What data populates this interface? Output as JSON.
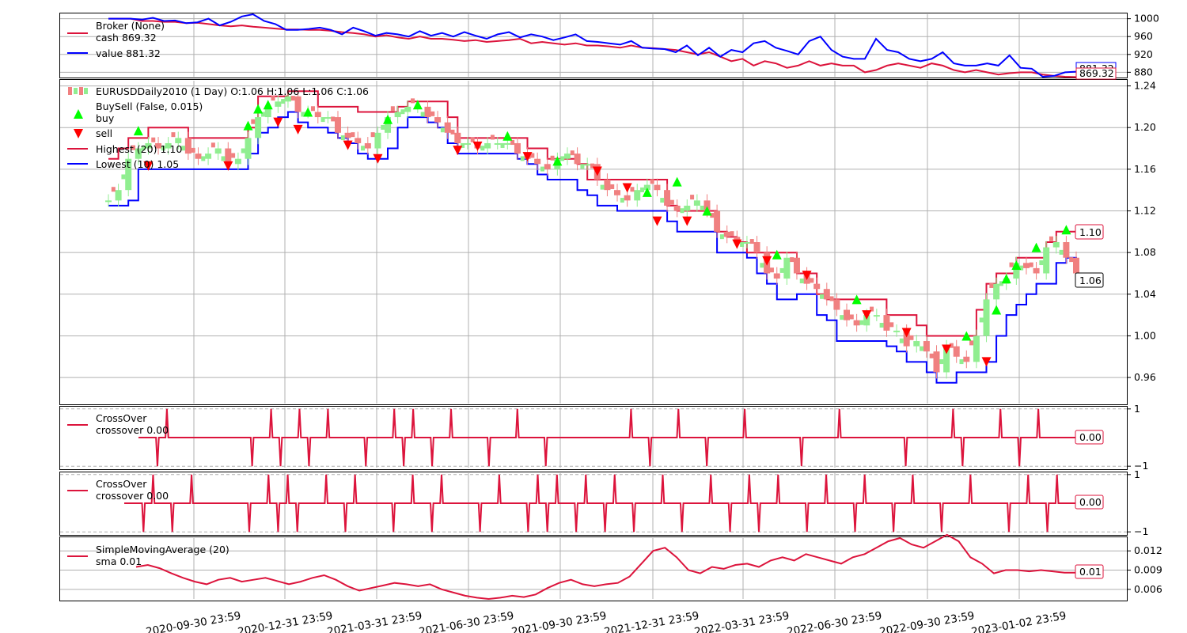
{
  "chart_data": [
    {
      "type": "line",
      "panel": "broker",
      "ylim": [
        870,
        1010
      ],
      "yticks": [
        1000,
        960,
        920,
        880
      ],
      "grid": true,
      "legend": {
        "placement": "top-left",
        "entries": [
          "Broker (None)",
          "cash 869.32",
          "value 881.32"
        ]
      },
      "series": [
        {
          "name": "cash 869.32",
          "color": "#dc143c",
          "values": [
            1000,
            1000,
            1000,
            995,
            995,
            993,
            993,
            990,
            991,
            988,
            985,
            983,
            985,
            982,
            980,
            978,
            976,
            976,
            975,
            975,
            973,
            970,
            968,
            965,
            960,
            963,
            958,
            955,
            960,
            955,
            955,
            953,
            950,
            952,
            948,
            950,
            952,
            955,
            945,
            948,
            945,
            942,
            945,
            940,
            940,
            938,
            935,
            940,
            935,
            934,
            932,
            930,
            925,
            920,
            925,
            915,
            905,
            910,
            895,
            905,
            900,
            890,
            895,
            905,
            895,
            900,
            895,
            895,
            880,
            885,
            895,
            900,
            895,
            890,
            900,
            895,
            885,
            880,
            885,
            880,
            875,
            878,
            880,
            880,
            875,
            872,
            870,
            869.32
          ]
        },
        {
          "name": "value 881.32",
          "color": "#0000ff",
          "values": [
            1000,
            1000,
            1000,
            998,
            1002,
            995,
            996,
            990,
            992,
            1000,
            985,
            993,
            1005,
            1010,
            995,
            988,
            975,
            975,
            977,
            980,
            975,
            965,
            980,
            972,
            962,
            968,
            965,
            960,
            972,
            962,
            968,
            960,
            970,
            962,
            955,
            965,
            970,
            958,
            965,
            960,
            952,
            958,
            965,
            950,
            948,
            945,
            942,
            950,
            935,
            933,
            932,
            925,
            940,
            918,
            935,
            915,
            930,
            925,
            945,
            950,
            935,
            928,
            920,
            950,
            960,
            930,
            915,
            910,
            910,
            955,
            930,
            925,
            910,
            905,
            910,
            925,
            900,
            895,
            895,
            900,
            895,
            918,
            890,
            888,
            870,
            872,
            880,
            881.32
          ]
        }
      ],
      "end_labels": [
        "881.32",
        "869.32"
      ]
    },
    {
      "type": "candlestick",
      "panel": "price",
      "ylim": [
        0.935,
        1.245
      ],
      "yticks": [
        "1.24",
        "1.20",
        "1.16",
        "1.12",
        "1.08",
        "1.04",
        "1.00",
        "0.96"
      ],
      "grid": true,
      "legend": {
        "placement": "top-left",
        "entries": [
          "EURUSDDaily2010 (1 Day) O:1.06 H:1.06 L:1.06 C:1.06",
          "BuySell (False, 0.015)",
          "buy",
          "sell",
          "Highest (20) 1.10",
          "Lowest (10) 1.05"
        ]
      },
      "close": [
        1.13,
        1.14,
        1.17,
        1.18,
        1.185,
        1.18,
        1.185,
        1.19,
        1.175,
        1.17,
        1.175,
        1.18,
        1.165,
        1.17,
        1.19,
        1.21,
        1.22,
        1.225,
        1.23,
        1.215,
        1.215,
        1.21,
        1.21,
        1.195,
        1.19,
        1.185,
        1.18,
        1.195,
        1.21,
        1.215,
        1.22,
        1.22,
        1.21,
        1.205,
        1.195,
        1.185,
        1.185,
        1.18,
        1.185,
        1.185,
        1.185,
        1.175,
        1.17,
        1.165,
        1.16,
        1.17,
        1.175,
        1.165,
        1.165,
        1.15,
        1.14,
        1.135,
        1.13,
        1.14,
        1.145,
        1.14,
        1.125,
        1.12,
        1.125,
        1.13,
        1.12,
        1.1,
        1.095,
        1.09,
        1.09,
        1.08,
        1.06,
        1.055,
        1.075,
        1.06,
        1.05,
        1.045,
        1.035,
        1.025,
        1.015,
        1.01,
        1.02,
        1.02,
        1.005,
        1.005,
        0.99,
        0.995,
        0.985,
        0.965,
        0.99,
        0.98,
        0.975,
        1.0,
        1.035,
        1.05,
        1.055,
        1.07,
        1.065,
        1.06,
        1.085,
        1.09,
        1.075,
        1.06
      ],
      "highest": [
        1.17,
        1.18,
        1.19,
        1.19,
        1.2,
        1.2,
        1.2,
        1.2,
        1.19,
        1.19,
        1.19,
        1.19,
        1.19,
        1.19,
        1.2,
        1.23,
        1.23,
        1.23,
        1.235,
        1.235,
        1.235,
        1.22,
        1.22,
        1.22,
        1.22,
        1.215,
        1.215,
        1.215,
        1.215,
        1.22,
        1.225,
        1.225,
        1.225,
        1.225,
        1.21,
        1.19,
        1.19,
        1.19,
        1.19,
        1.19,
        1.19,
        1.19,
        1.18,
        1.18,
        1.17,
        1.17,
        1.17,
        1.165,
        1.15,
        1.15,
        1.15,
        1.15,
        1.15,
        1.15,
        1.15,
        1.15,
        1.125,
        1.12,
        1.12,
        1.12,
        1.12,
        1.1,
        1.095,
        1.09,
        1.08,
        1.08,
        1.08,
        1.08,
        1.08,
        1.06,
        1.06,
        1.04,
        1.035,
        1.035,
        1.035,
        1.035,
        1.035,
        1.035,
        1.02,
        1.02,
        1.02,
        1.01,
        1.0,
        1.0,
        1.0,
        1.0,
        1.0,
        1.025,
        1.05,
        1.06,
        1.06,
        1.075,
        1.075,
        1.075,
        1.09,
        1.1,
        1.1,
        1.1
      ],
      "lowest": [
        1.125,
        1.125,
        1.13,
        1.16,
        1.16,
        1.16,
        1.16,
        1.16,
        1.16,
        1.16,
        1.16,
        1.16,
        1.16,
        1.16,
        1.175,
        1.195,
        1.2,
        1.21,
        1.215,
        1.205,
        1.2,
        1.2,
        1.195,
        1.19,
        1.185,
        1.175,
        1.17,
        1.17,
        1.18,
        1.2,
        1.21,
        1.21,
        1.205,
        1.2,
        1.185,
        1.175,
        1.175,
        1.175,
        1.175,
        1.175,
        1.175,
        1.17,
        1.165,
        1.155,
        1.15,
        1.15,
        1.15,
        1.14,
        1.135,
        1.125,
        1.125,
        1.12,
        1.12,
        1.12,
        1.12,
        1.12,
        1.11,
        1.1,
        1.1,
        1.1,
        1.1,
        1.08,
        1.08,
        1.08,
        1.075,
        1.06,
        1.05,
        1.035,
        1.035,
        1.04,
        1.04,
        1.02,
        1.015,
        0.995,
        0.995,
        0.995,
        0.995,
        0.995,
        0.99,
        0.985,
        0.975,
        0.975,
        0.965,
        0.955,
        0.955,
        0.965,
        0.965,
        0.965,
        0.975,
        1.0,
        1.02,
        1.03,
        1.04,
        1.05,
        1.05,
        1.07,
        1.075,
        1.05
      ],
      "buy_markers": [
        [
          3,
          1.197
        ],
        [
          14,
          1.202
        ],
        [
          15,
          1.218
        ],
        [
          16,
          1.222
        ],
        [
          20,
          1.215
        ],
        [
          28,
          1.208
        ],
        [
          31,
          1.222
        ],
        [
          40,
          1.192
        ],
        [
          45,
          1.168
        ],
        [
          54,
          1.138
        ],
        [
          57,
          1.148
        ],
        [
          60,
          1.12
        ],
        [
          67,
          1.078
        ],
        [
          75,
          1.035
        ],
        [
          86,
          1.0
        ],
        [
          89,
          1.025
        ],
        [
          90,
          1.055
        ],
        [
          91,
          1.068
        ],
        [
          93,
          1.085
        ],
        [
          96,
          1.102
        ]
      ],
      "sell_markers": [
        [
          4,
          1.163
        ],
        [
          12,
          1.163
        ],
        [
          17,
          1.205
        ],
        [
          19,
          1.198
        ],
        [
          24,
          1.183
        ],
        [
          27,
          1.17
        ],
        [
          35,
          1.178
        ],
        [
          37,
          1.182
        ],
        [
          42,
          1.172
        ],
        [
          49,
          1.158
        ],
        [
          52,
          1.142
        ],
        [
          55,
          1.11
        ],
        [
          58,
          1.11
        ],
        [
          63,
          1.088
        ],
        [
          66,
          1.072
        ],
        [
          70,
          1.058
        ],
        [
          76,
          1.02
        ],
        [
          80,
          1.003
        ],
        [
          84,
          0.987
        ],
        [
          88,
          0.975
        ]
      ],
      "end_labels": [
        "1.10",
        "1.06"
      ]
    },
    {
      "type": "line",
      "panel": "crossover_1",
      "ylim": [
        -1.05,
        1.05
      ],
      "yticks": [
        "1",
        "−1"
      ],
      "legend": {
        "placement": "top-left",
        "entries": [
          "CrossOver",
          "crossover 0.00"
        ]
      },
      "series": [
        {
          "name": "crossover 0.00",
          "color": "#dc143c",
          "events": [
            [
              2,
              -1
            ],
            [
              3,
              1
            ],
            [
              12,
              -1
            ],
            [
              14,
              1
            ],
            [
              15,
              -1
            ],
            [
              17,
              1
            ],
            [
              18,
              -1
            ],
            [
              20,
              1
            ],
            [
              24,
              -1
            ],
            [
              27,
              1
            ],
            [
              28,
              -1
            ],
            [
              29,
              1
            ],
            [
              31,
              -1
            ],
            [
              33,
              1
            ],
            [
              37,
              -1
            ],
            [
              40,
              1
            ],
            [
              43,
              -1
            ],
            [
              52,
              1
            ],
            [
              54,
              -1
            ],
            [
              57,
              1
            ],
            [
              60,
              -1
            ],
            [
              64,
              1
            ],
            [
              70,
              -1
            ],
            [
              74,
              1
            ],
            [
              81,
              -1
            ],
            [
              86,
              1
            ],
            [
              87,
              -1
            ],
            [
              91,
              1
            ],
            [
              93,
              -1
            ],
            [
              95,
              1
            ]
          ]
        }
      ],
      "end_label": "0.00"
    },
    {
      "type": "line",
      "panel": "crossover_2",
      "ylim": [
        -1.05,
        1.05
      ],
      "yticks": [
        "1",
        "−1"
      ],
      "legend": {
        "placement": "top-left",
        "entries": [
          "CrossOver",
          "crossover 0.00"
        ]
      },
      "series": [
        {
          "name": "crossover 0.00",
          "color": "#dc143c",
          "events": [
            [
              2,
              -1
            ],
            [
              3,
              1
            ],
            [
              5,
              -1
            ],
            [
              7,
              1
            ],
            [
              13,
              -1
            ],
            [
              15,
              1
            ],
            [
              16,
              -1
            ],
            [
              17,
              1
            ],
            [
              18,
              -1
            ],
            [
              21,
              1
            ],
            [
              23,
              -1
            ],
            [
              24,
              1
            ],
            [
              28,
              -1
            ],
            [
              30,
              1
            ],
            [
              32,
              -1
            ],
            [
              33,
              1
            ],
            [
              37,
              -1
            ],
            [
              39,
              1
            ],
            [
              42,
              -1
            ],
            [
              43,
              1
            ],
            [
              44,
              -1
            ],
            [
              45,
              1
            ],
            [
              47,
              -1
            ],
            [
              48,
              1
            ],
            [
              50,
              -1
            ],
            [
              51,
              1
            ],
            [
              53,
              -1
            ],
            [
              56,
              1
            ],
            [
              58,
              -1
            ],
            [
              61,
              1
            ],
            [
              63,
              -1
            ],
            [
              65,
              1
            ],
            [
              66,
              -1
            ],
            [
              68,
              1
            ],
            [
              71,
              -1
            ],
            [
              73,
              1
            ],
            [
              76,
              -1
            ],
            [
              77,
              1
            ],
            [
              80,
              -1
            ],
            [
              82,
              1
            ],
            [
              85,
              -1
            ],
            [
              88,
              1
            ],
            [
              92,
              -1
            ],
            [
              94,
              1
            ],
            [
              96,
              -1
            ],
            [
              97,
              1
            ]
          ]
        }
      ],
      "end_label": "0.00"
    },
    {
      "type": "line",
      "panel": "sma",
      "ylim": [
        0.0045,
        0.014
      ],
      "yticks": [
        "0.012",
        "0.009",
        "0.006"
      ],
      "grid": true,
      "legend": {
        "placement": "top-left",
        "entries": [
          "SimpleMovingAverage (20)",
          "sma 0.01"
        ]
      },
      "series": [
        {
          "name": "sma 0.01",
          "color": "#dc143c",
          "values": [
            0.0095,
            0.0098,
            0.0093,
            0.0085,
            0.0078,
            0.0072,
            0.0068,
            0.0075,
            0.0078,
            0.0072,
            0.0075,
            0.0078,
            0.0073,
            0.0068,
            0.0072,
            0.0078,
            0.0082,
            0.0075,
            0.0065,
            0.0058,
            0.0062,
            0.0066,
            0.007,
            0.0068,
            0.0065,
            0.0068,
            0.006,
            0.0055,
            0.005,
            0.0047,
            0.0045,
            0.0047,
            0.005,
            0.0048,
            0.0052,
            0.0062,
            0.007,
            0.0075,
            0.0068,
            0.0065,
            0.0068,
            0.007,
            0.008,
            0.01,
            0.012,
            0.0125,
            0.011,
            0.009,
            0.0085,
            0.0095,
            0.0092,
            0.0098,
            0.01,
            0.0095,
            0.0105,
            0.011,
            0.0105,
            0.0115,
            0.011,
            0.0105,
            0.01,
            0.011,
            0.0115,
            0.0125,
            0.0135,
            0.014,
            0.013,
            0.0125,
            0.0135,
            0.0145,
            0.0135,
            0.011,
            0.01,
            0.0085,
            0.009,
            0.009,
            0.0088,
            0.009,
            0.0088,
            0.0086,
            0.0086
          ]
        }
      ],
      "end_label": "0.01"
    }
  ],
  "x_axis": {
    "tick_labels": [
      "2020-09-30 23:59",
      "2020-12-31 23:59",
      "2021-03-31 23:59",
      "2021-06-30 23:59",
      "2021-09-30 23:59",
      "2021-12-31 23:59",
      "2022-03-31 23:59",
      "2022-06-30 23:59",
      "2022-09-30 23:59",
      "2023-01-02 23:59"
    ]
  },
  "colors": {
    "red": "#dc143c",
    "blue": "#0000ff",
    "buy": "#00ff00",
    "sell": "#ff0000",
    "up_candle": "#90ee90",
    "down_candle": "#f08080"
  }
}
